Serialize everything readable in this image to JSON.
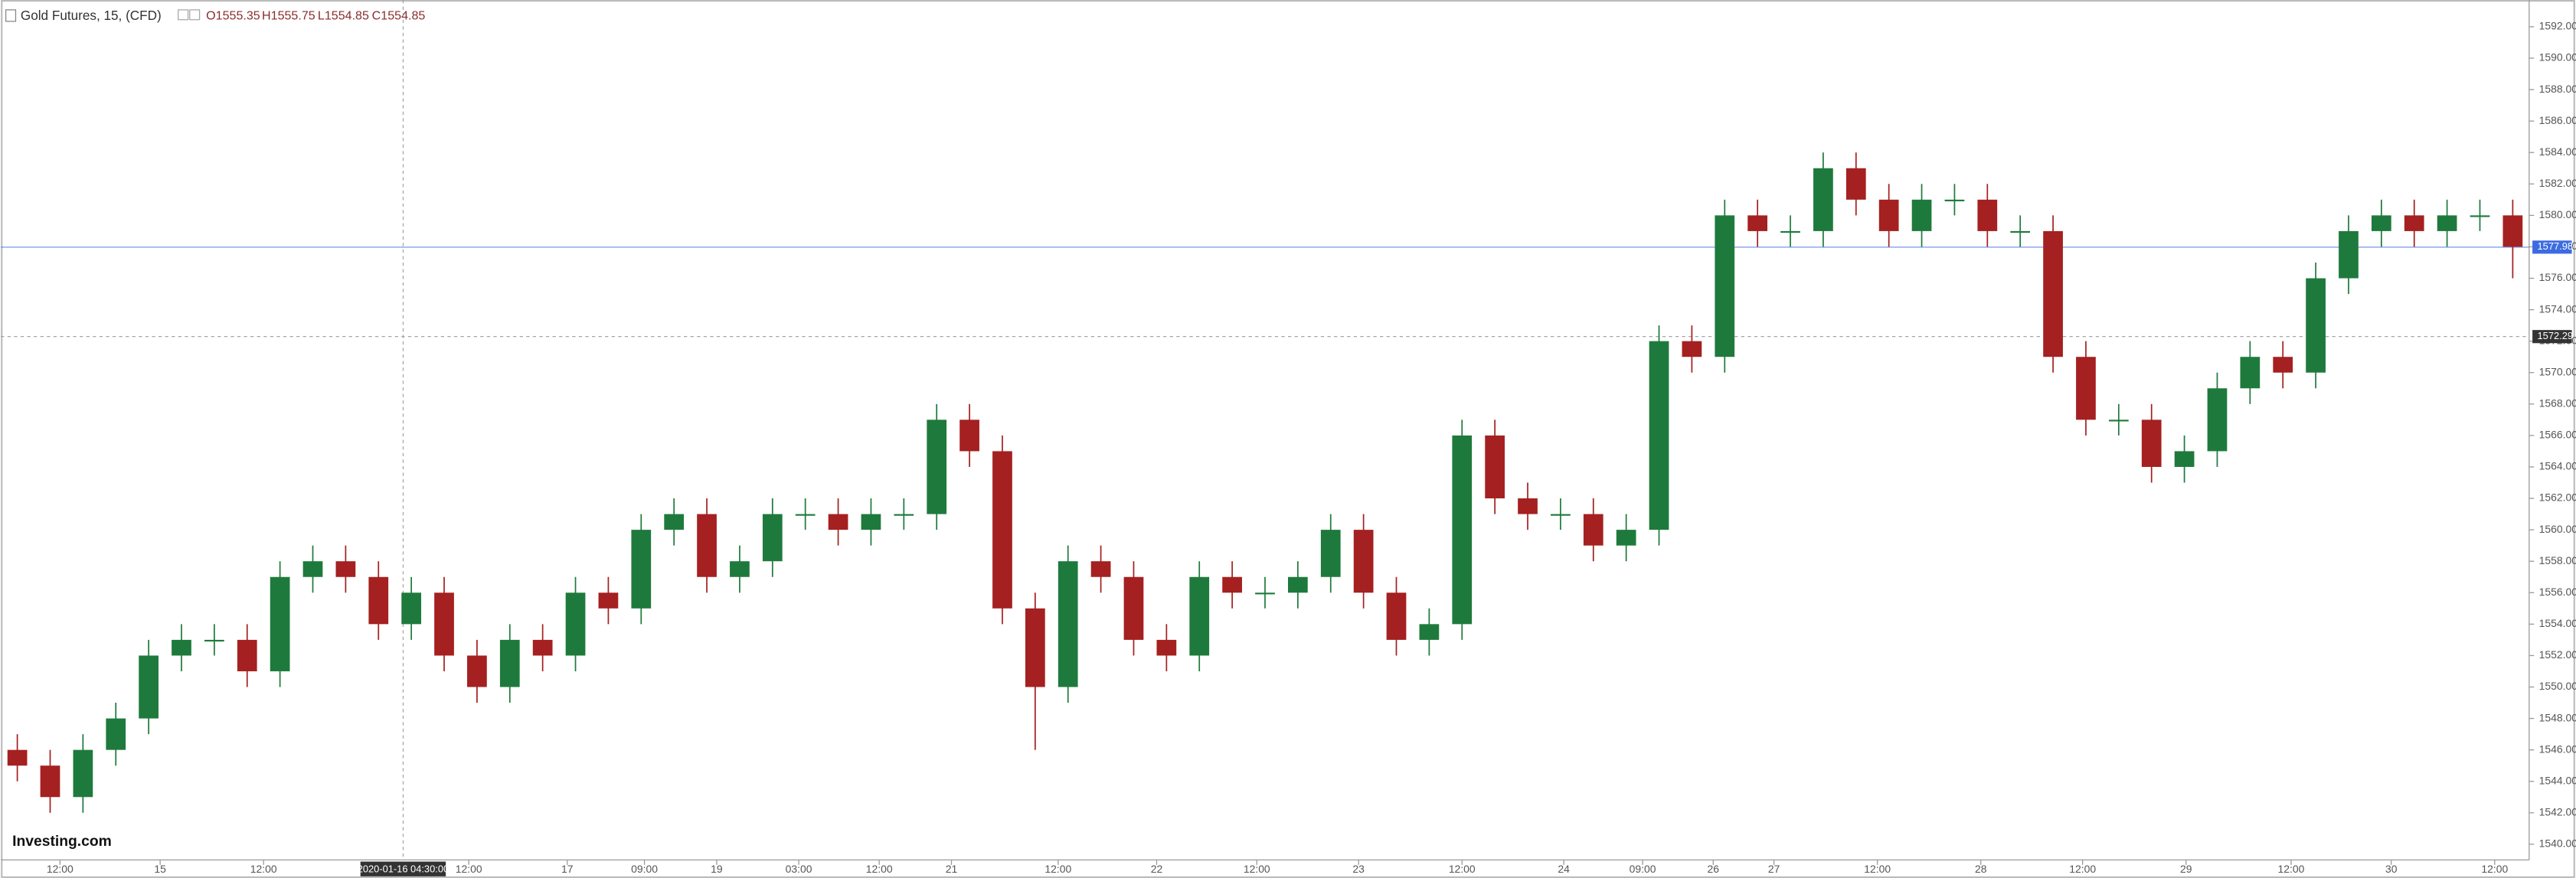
{
  "chart_data": {
    "type": "candlestick",
    "title": "Gold Futures, 15, (CFD)",
    "ohlc_labels": [
      "O1555.35",
      "H1555.75",
      "L1554.85",
      "C1554.85"
    ],
    "logo": "Investing.com",
    "up_color": "#1e7a3c",
    "down_color": "#a52020",
    "last_price": 1577.98,
    "last_price_color": "#3d6be0",
    "crosshair": {
      "x": 245,
      "y": 1572.29,
      "x_label": "2020-01-16 04:30:00"
    },
    "xlim": [
      0,
      1540
    ],
    "ylim": [
      1539,
      1593.7
    ],
    "yticks": [
      {
        "value": 1540,
        "label": "1540.00"
      },
      {
        "value": 1542,
        "label": "1542.00"
      },
      {
        "value": 1544,
        "label": "1544.00"
      },
      {
        "value": 1546,
        "label": "1546.00"
      },
      {
        "value": 1548,
        "label": "1548.00"
      },
      {
        "value": 1550,
        "label": "1550.00"
      },
      {
        "value": 1552,
        "label": "1552.00"
      },
      {
        "value": 1554,
        "label": "1554.00"
      },
      {
        "value": 1556,
        "label": "1556.00"
      },
      {
        "value": 1558,
        "label": "1558.00"
      },
      {
        "value": 1560,
        "label": "1560.00"
      },
      {
        "value": 1562,
        "label": "1562.00"
      },
      {
        "value": 1564,
        "label": "1564.00"
      },
      {
        "value": 1566,
        "label": "1566.00"
      },
      {
        "value": 1568,
        "label": "1568.00"
      },
      {
        "value": 1570,
        "label": "1570.00"
      },
      {
        "value": 1572,
        "label": "1572.00"
      },
      {
        "value": 1574,
        "label": "1574.00"
      },
      {
        "value": 1576,
        "label": "1576.00"
      },
      {
        "value": 1578,
        "label": "1578.00"
      },
      {
        "value": 1580,
        "label": "1580.00"
      },
      {
        "value": 1582,
        "label": "1582.00"
      },
      {
        "value": 1584,
        "label": "1584.00"
      },
      {
        "value": 1586,
        "label": "1586.00"
      },
      {
        "value": 1588,
        "label": "1588.00"
      },
      {
        "value": 1590,
        "label": "1590.00"
      },
      {
        "value": 1592,
        "label": "1592.00"
      }
    ],
    "xticks": [
      {
        "value": 36,
        "label": "12:00"
      },
      {
        "value": 97,
        "label": "15"
      },
      {
        "value": 160,
        "label": "12:00"
      },
      {
        "value": 285,
        "label": "12:00"
      },
      {
        "value": 345,
        "label": "17"
      },
      {
        "value": 392,
        "label": "09:00"
      },
      {
        "value": 436,
        "label": "19"
      },
      {
        "value": 486,
        "label": "03:00"
      },
      {
        "value": 535,
        "label": "12:00"
      },
      {
        "value": 579,
        "label": "21"
      },
      {
        "value": 644,
        "label": "12:00"
      },
      {
        "value": 704,
        "label": "22"
      },
      {
        "value": 765,
        "label": "12:00"
      },
      {
        "value": 827,
        "label": "23"
      },
      {
        "value": 890,
        "label": "12:00"
      },
      {
        "value": 952,
        "label": "24"
      },
      {
        "value": 1000,
        "label": "09:00"
      },
      {
        "value": 1043,
        "label": "26"
      },
      {
        "value": 1080,
        "label": "27"
      },
      {
        "value": 1143,
        "label": "12:00"
      },
      {
        "value": 1206,
        "label": "28"
      },
      {
        "value": 1268,
        "label": "12:00"
      },
      {
        "value": 1331,
        "label": "29"
      },
      {
        "value": 1395,
        "label": "12:00"
      },
      {
        "value": 1456,
        "label": "30"
      },
      {
        "value": 1519,
        "label": "12:00"
      }
    ],
    "x": [
      10,
      30,
      50,
      70,
      90,
      110,
      130,
      150,
      170,
      190,
      210,
      230,
      250,
      270,
      290,
      310,
      330,
      350,
      370,
      390,
      410,
      430,
      450,
      470,
      490,
      510,
      530,
      550,
      570,
      590,
      610,
      630,
      650,
      670,
      690,
      710,
      730,
      750,
      770,
      790,
      810,
      830,
      850,
      870,
      890,
      910,
      930,
      950,
      970,
      990,
      1010,
      1030,
      1050,
      1070,
      1090,
      1110,
      1130,
      1150,
      1170,
      1190,
      1210,
      1230,
      1250,
      1270,
      1290,
      1310,
      1330,
      1350,
      1370,
      1390,
      1410,
      1430,
      1450,
      1470,
      1490,
      1510,
      1530
    ],
    "open": [
      1546,
      1545,
      1543,
      1546,
      1548,
      1552,
      1553,
      1553,
      1551,
      1557,
      1558,
      1557,
      1554,
      1556,
      1552,
      1550,
      1553,
      1552,
      1556,
      1555,
      1560,
      1561,
      1557,
      1558,
      1561,
      1561,
      1560,
      1561,
      1561,
      1567,
      1565,
      1555,
      1550,
      1558,
      1557,
      1553,
      1552,
      1557,
      1556,
      1556,
      1557,
      1560,
      1556,
      1553,
      1554,
      1566,
      1562,
      1561,
      1561,
      1559,
      1560,
      1572,
      1571,
      1580,
      1579,
      1579,
      1583,
      1581,
      1579,
      1581,
      1581,
      1579,
      1579,
      1571,
      1567,
      1567,
      1564,
      1565,
      1569,
      1571,
      1570,
      1576,
      1579,
      1580,
      1579,
      1580,
      1580
    ],
    "high": [
      1547,
      1546,
      1547,
      1549,
      1553,
      1554,
      1554,
      1554,
      1558,
      1559,
      1559,
      1558,
      1557,
      1557,
      1553,
      1554,
      1554,
      1557,
      1557,
      1561,
      1562,
      1562,
      1559,
      1562,
      1562,
      1562,
      1562,
      1562,
      1568,
      1568,
      1566,
      1556,
      1559,
      1559,
      1558,
      1554,
      1558,
      1558,
      1557,
      1558,
      1561,
      1561,
      1557,
      1555,
      1567,
      1567,
      1563,
      1562,
      1562,
      1561,
      1573,
      1573,
      1581,
      1581,
      1580,
      1584,
      1584,
      1582,
      1582,
      1582,
      1582,
      1580,
      1580,
      1572,
      1568,
      1568,
      1566,
      1570,
      1572,
      1572,
      1577,
      1580,
      1581,
      1581,
      1581,
      1581,
      1581
    ],
    "low": [
      1544,
      1542,
      1542,
      1545,
      1547,
      1551,
      1552,
      1550,
      1550,
      1556,
      1556,
      1553,
      1553,
      1551,
      1549,
      1549,
      1551,
      1551,
      1554,
      1554,
      1559,
      1556,
      1556,
      1557,
      1560,
      1559,
      1559,
      1560,
      1560,
      1564,
      1554,
      1546,
      1549,
      1556,
      1552,
      1551,
      1551,
      1555,
      1555,
      1555,
      1556,
      1555,
      1552,
      1552,
      1553,
      1561,
      1560,
      1560,
      1558,
      1558,
      1559,
      1570,
      1570,
      1578,
      1578,
      1578,
      1580,
      1578,
      1578,
      1580,
      1578,
      1578,
      1570,
      1566,
      1566,
      1563,
      1563,
      1564,
      1568,
      1569,
      1569,
      1575,
      1578,
      1578,
      1578,
      1579,
      1576
    ],
    "close": [
      1545,
      1543,
      1546,
      1548,
      1552,
      1553,
      1553,
      1551,
      1557,
      1558,
      1557,
      1554,
      1556,
      1552,
      1550,
      1553,
      1552,
      1556,
      1555,
      1560,
      1561,
      1557,
      1558,
      1561,
      1561,
      1560,
      1561,
      1561,
      1567,
      1565,
      1555,
      1550,
      1558,
      1557,
      1553,
      1552,
      1557,
      1556,
      1556,
      1557,
      1560,
      1556,
      1553,
      1554,
      1566,
      1562,
      1561,
      1561,
      1559,
      1560,
      1572,
      1571,
      1580,
      1579,
      1579,
      1583,
      1581,
      1579,
      1581,
      1581,
      1579,
      1579,
      1571,
      1567,
      1567,
      1564,
      1565,
      1569,
      1571,
      1570,
      1576,
      1579,
      1580,
      1579,
      1580,
      1580,
      1578
    ]
  }
}
